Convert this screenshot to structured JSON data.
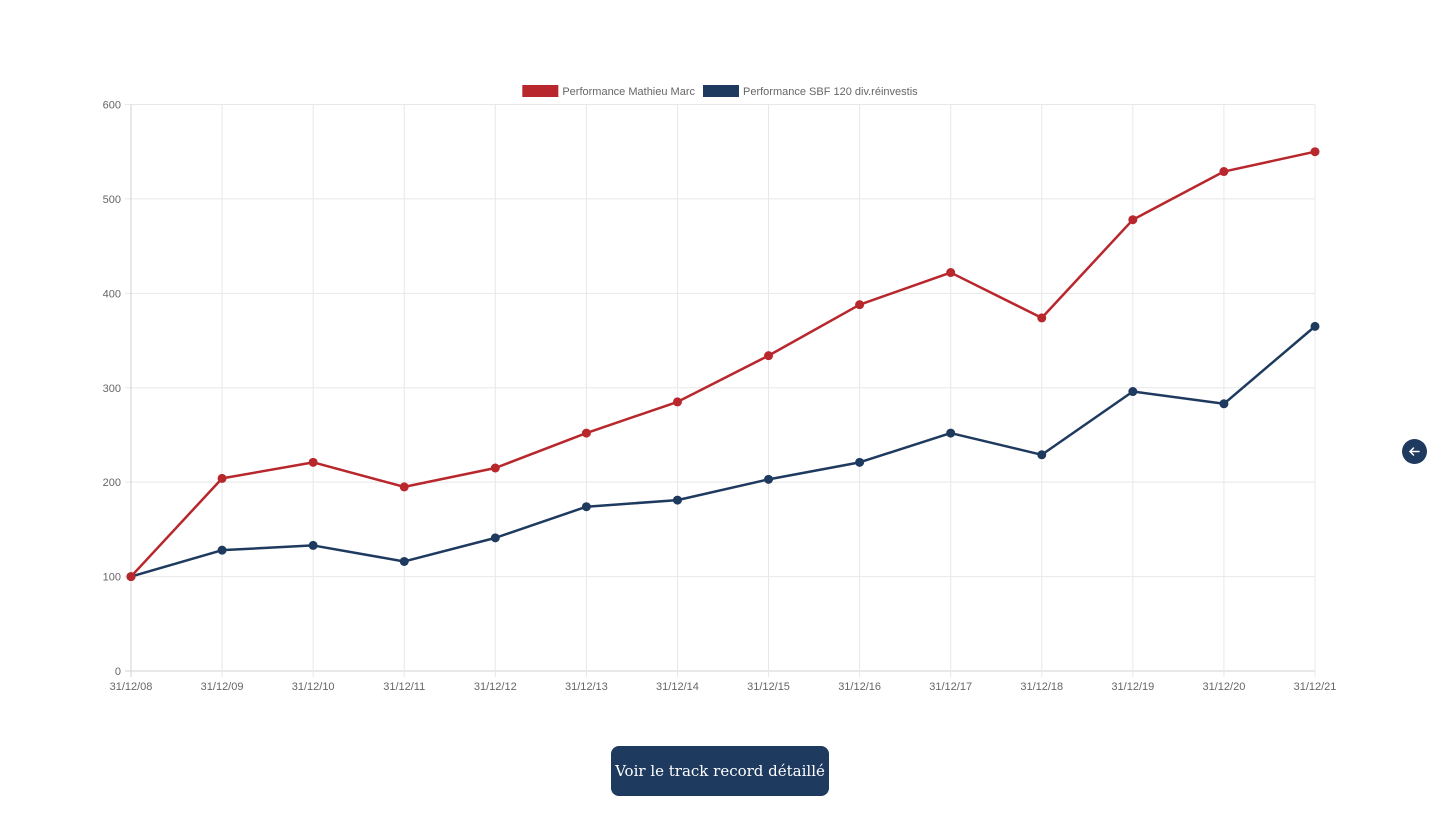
{
  "chart_data": {
    "type": "line",
    "categories": [
      "31/12/08",
      "31/12/09",
      "31/12/10",
      "31/12/11",
      "31/12/12",
      "31/12/13",
      "31/12/14",
      "31/12/15",
      "31/12/16",
      "31/12/17",
      "31/12/18",
      "31/12/19",
      "31/12/20",
      "31/12/21"
    ],
    "series": [
      {
        "name": "Performance Mathieu Marc",
        "color": "#b8272c",
        "values": [
          100,
          204,
          221,
          195,
          215,
          252,
          285,
          334,
          388,
          422,
          374,
          478,
          529,
          550
        ]
      },
      {
        "name": "Performance SBF 120 div.réinvestis",
        "color": "#1e3a5f",
        "values": [
          100,
          128,
          133,
          116,
          141,
          174,
          181,
          203,
          221,
          252,
          229,
          296,
          283,
          365
        ]
      }
    ],
    "yticks": [
      "0",
      "100",
      "200",
      "300",
      "400",
      "500",
      "600"
    ],
    "ylim": [
      0,
      600
    ],
    "grid": true,
    "legend_position": "top"
  },
  "cta": {
    "label": "Voir le track record détaillé"
  },
  "back_button": {
    "icon": "arrow-left-icon"
  },
  "colors": {
    "primary": "#1e3a5f",
    "accent": "#b8272c"
  }
}
